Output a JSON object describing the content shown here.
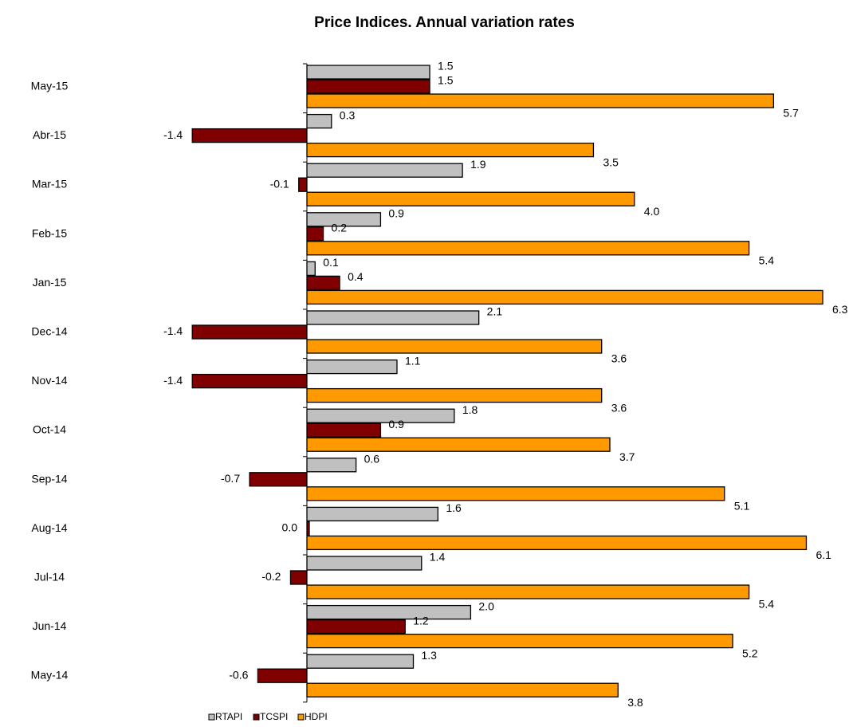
{
  "chart_data": {
    "type": "bar",
    "orientation": "horizontal",
    "title": "Price Indices. Annual variation rates",
    "categories": [
      "May-15",
      "Abr-15",
      "Mar-15",
      "Feb-15",
      "Jan-15",
      "Dec-14",
      "Nov-14",
      "Oct-14",
      "Sep-14",
      "Aug-14",
      "Jul-14",
      "Jun-14",
      "May-14"
    ],
    "series": [
      {
        "name": "RTAPI",
        "color": "#c0c0c0",
        "values": [
          1.5,
          0.3,
          1.9,
          0.9,
          0.1,
          2.1,
          1.1,
          1.8,
          0.6,
          1.6,
          1.4,
          2.0,
          1.3
        ],
        "labels": [
          "1.5",
          "0.3",
          "1.9",
          "0.9",
          "0.1",
          "2.1",
          "1.1",
          "1.8",
          "0.6",
          "1.6",
          "1.4",
          "2.0",
          "1.3"
        ]
      },
      {
        "name": "TCSPI",
        "color": "#800000",
        "values": [
          1.5,
          -1.4,
          -0.1,
          0.2,
          0.4,
          -1.4,
          -1.4,
          0.9,
          -0.7,
          0.0,
          -0.2,
          1.2,
          -0.6
        ],
        "labels": [
          "1.5",
          "-1.4",
          "-0.1",
          "0.2",
          "0.4",
          "-1.4",
          "-1.4",
          "0.9",
          "-0.7",
          "0.0",
          "-0.2",
          "1.2",
          "-0.6"
        ]
      },
      {
        "name": "HDPI",
        "color": "#ff9900",
        "values": [
          5.7,
          3.5,
          4.0,
          5.4,
          6.3,
          3.6,
          3.6,
          3.7,
          5.1,
          6.1,
          5.4,
          5.2,
          3.8
        ],
        "labels": [
          "5.7",
          "3.5",
          "4.0",
          "5.4",
          "6.3",
          "3.6",
          "3.6",
          "3.7",
          "5.1",
          "6.1",
          "5.4",
          "5.2",
          "3.8"
        ]
      }
    ],
    "xlabel": "",
    "ylabel": "",
    "grid": false,
    "legend_position": "bottom-center"
  }
}
